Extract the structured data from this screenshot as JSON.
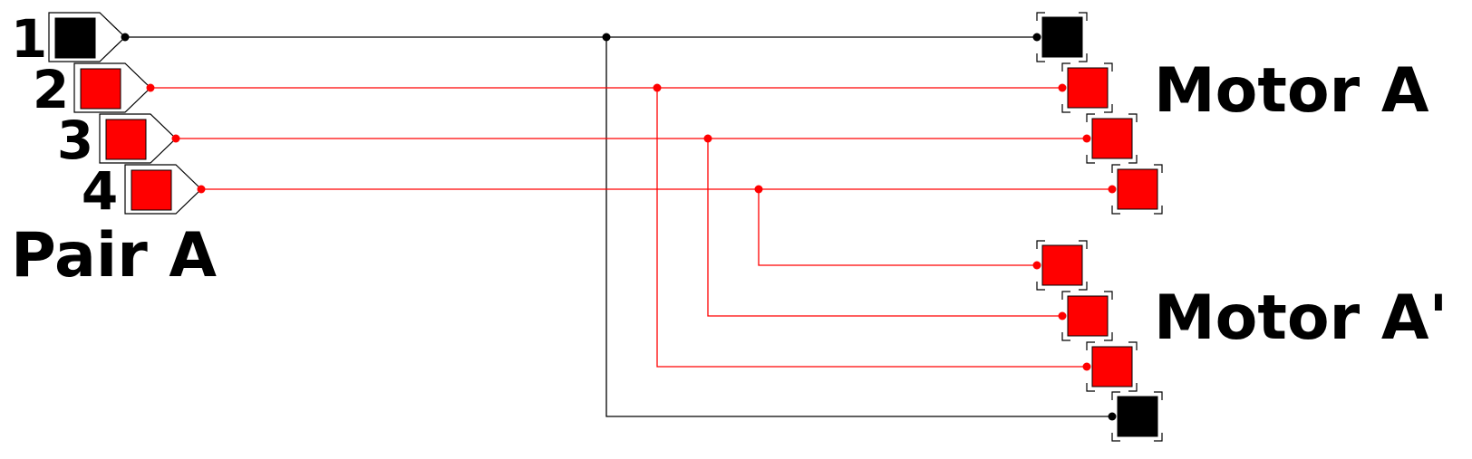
{
  "colors": {
    "ground": "#000000",
    "signal": "#ff0000"
  },
  "labels": {
    "pair": "Pair A",
    "motor_a": "Motor A",
    "motor_a_prime": "Motor A'"
  },
  "pins": [
    {
      "number": "1",
      "color": "ground"
    },
    {
      "number": "2",
      "color": "signal"
    },
    {
      "number": "3",
      "color": "signal"
    },
    {
      "number": "4",
      "color": "signal"
    }
  ]
}
